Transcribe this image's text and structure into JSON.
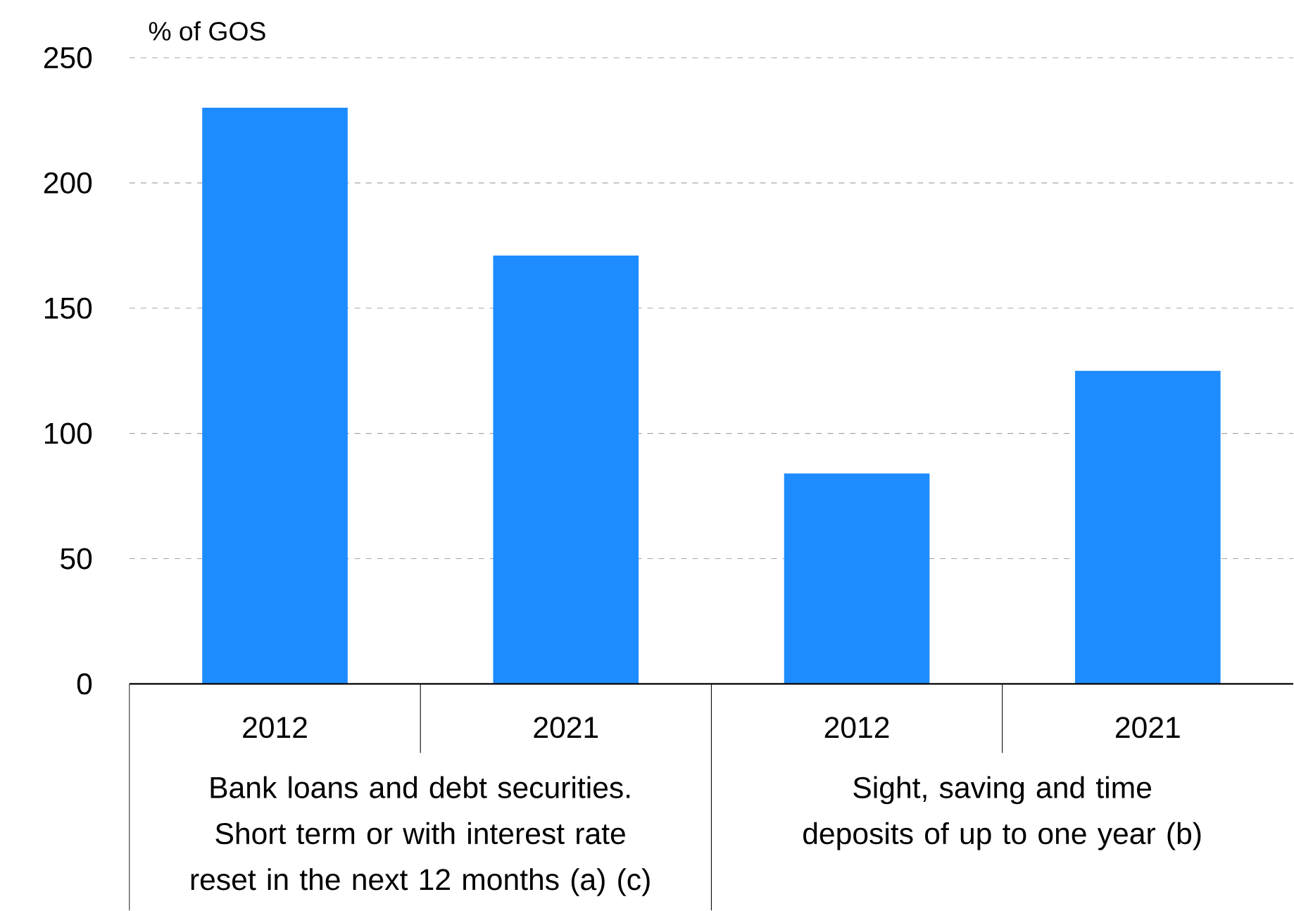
{
  "chart_data": {
    "type": "bar",
    "ylabel": "% of GOS",
    "categories": [
      "2012",
      "2021",
      "2012",
      "2021"
    ],
    "values": [
      230,
      171,
      84,
      125
    ],
    "color": "#1e8cff",
    "ylim": [
      0,
      250
    ],
    "yticks": [
      0,
      50,
      100,
      150,
      200,
      250
    ],
    "grid": "y",
    "annotations": [
      "Bank loans and debt securities. Short term or with interest rate reset in the next 12 months (a) (c)",
      "Sight, saving and time deposits of up to one year (b)"
    ]
  }
}
